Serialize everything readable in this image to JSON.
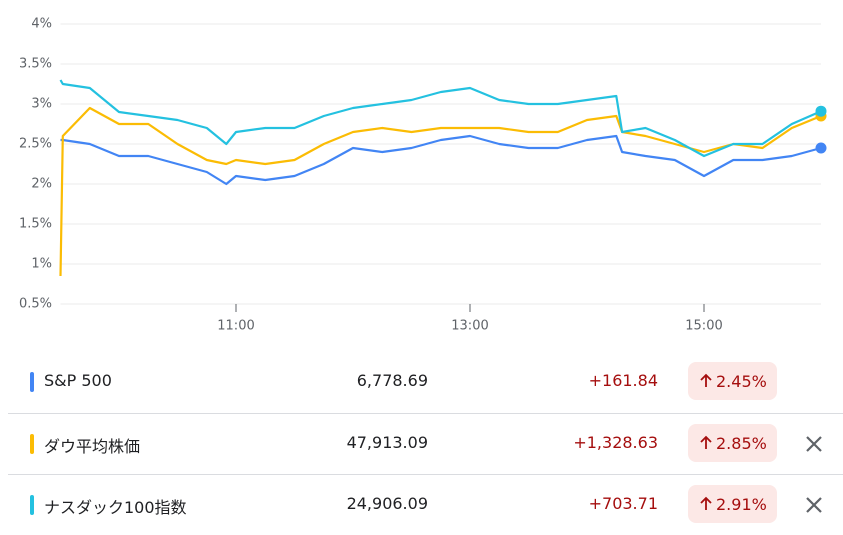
{
  "chart_data": {
    "type": "line",
    "x": [
      9.5,
      9.52,
      9.75,
      10,
      10.25,
      10.5,
      10.75,
      10.917,
      11,
      11.25,
      11.5,
      11.75,
      12,
      12.25,
      12.5,
      12.75,
      13,
      13.25,
      13.5,
      13.75,
      14,
      14.25,
      14.3,
      14.5,
      14.75,
      15,
      15.25,
      15.5,
      15.75,
      16
    ],
    "series": [
      {
        "color": "#4285f4",
        "values": [
          2.55,
          2.55,
          2.5,
          2.35,
          2.35,
          2.25,
          2.15,
          2.0,
          2.1,
          2.05,
          2.1,
          2.25,
          2.45,
          2.4,
          2.45,
          2.55,
          2.6,
          2.5,
          2.45,
          2.45,
          2.55,
          2.6,
          2.4,
          2.35,
          2.3,
          2.1,
          2.3,
          2.3,
          2.35,
          2.45
        ]
      },
      {
        "color": "#fbbc04",
        "values": [
          0.85,
          2.6,
          2.95,
          2.75,
          2.75,
          2.5,
          2.3,
          2.25,
          2.3,
          2.25,
          2.3,
          2.5,
          2.65,
          2.7,
          2.65,
          2.7,
          2.7,
          2.7,
          2.65,
          2.65,
          2.8,
          2.85,
          2.65,
          2.6,
          2.5,
          2.4,
          2.5,
          2.45,
          2.7,
          2.85
        ]
      },
      {
        "color": "#24c1e0",
        "values": [
          3.3,
          3.25,
          3.2,
          2.9,
          2.85,
          2.8,
          2.7,
          2.5,
          2.65,
          2.7,
          2.7,
          2.85,
          2.95,
          3.0,
          3.05,
          3.15,
          3.2,
          3.05,
          3.0,
          3.0,
          3.05,
          3.1,
          2.65,
          2.7,
          2.55,
          2.35,
          2.5,
          2.5,
          2.75,
          2.91
        ]
      }
    ],
    "xlim": [
      9.5,
      16
    ],
    "xticks": [
      {
        "value": 11,
        "label": "11:00"
      },
      {
        "value": 13,
        "label": "13:00"
      },
      {
        "value": 15,
        "label": "15:00"
      }
    ],
    "ylim": [
      0.5,
      4
    ],
    "yticks": [
      {
        "value": 0.5,
        "label": "0.5%"
      },
      {
        "value": 1,
        "label": "1%"
      },
      {
        "value": 1.5,
        "label": "1.5%"
      },
      {
        "value": 2,
        "label": "2%"
      },
      {
        "value": 2.5,
        "label": "2.5%"
      },
      {
        "value": 3,
        "label": "3%"
      },
      {
        "value": 3.5,
        "label": "3.5%"
      },
      {
        "value": 4,
        "label": "4%"
      }
    ],
    "grid": true
  },
  "table": {
    "rows": [
      {
        "name": "S&P 500",
        "price": "6,778.69",
        "change": "+161.84",
        "percent": "2.45%"
      },
      {
        "name": "ダウ平均株価",
        "price": "47,913.09",
        "change": "+1,328.63",
        "percent": "2.85%"
      },
      {
        "name": "ナスダック100指数",
        "price": "24,906.09",
        "change": "+703.71",
        "percent": "2.91%"
      }
    ]
  }
}
